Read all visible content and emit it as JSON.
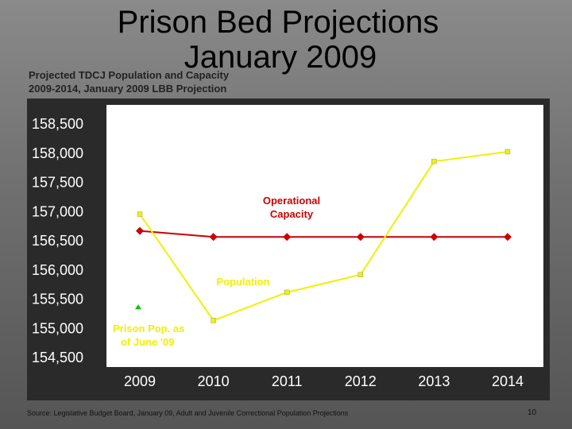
{
  "title": {
    "line1": "Prison Bed Projections",
    "line2": "January 2009"
  },
  "subtitle": {
    "line1": "Projected TDCJ Population and Capacity",
    "line2": "2009-2014, January 2009 LBB Projection"
  },
  "source": "Source: Legislative Budget Board, January 09, Adult and Juvenile Correctional Population Projections",
  "page_number": "10",
  "chart_data": {
    "type": "line",
    "categories": [
      "2009",
      "2010",
      "2011",
      "2012",
      "2013",
      "2014"
    ],
    "ylim": [
      154500,
      158500
    ],
    "y_ticks": [
      "158,500",
      "158,000",
      "157,500",
      "157,000",
      "156,500",
      "156,000",
      "155,500",
      "155,000",
      "154,500"
    ],
    "y_tick_values": [
      158500,
      158000,
      157500,
      157000,
      156500,
      156000,
      155500,
      155000,
      154500
    ],
    "grid": false,
    "series": [
      {
        "name": "Operational Capacity",
        "color": "#cc0000",
        "marker": "diamond",
        "values": [
          156641,
          156538,
          156538,
          156538,
          156538,
          156538
        ],
        "data_labels": [
          "156,641",
          "",
          "",
          "",
          "",
          "156,538"
        ]
      },
      {
        "name": "Population",
        "color": "#f0f000",
        "marker": "square",
        "values": [
          156928,
          155107,
          155589,
          155891,
          157831,
          157997
        ],
        "data_labels": [
          "156,928",
          "155,107",
          "155,589",
          "155,891",
          "157,831",
          "157,997"
        ]
      }
    ],
    "annotations": {
      "prison_pop_value": "155,329",
      "prison_pop_value_number": 155329,
      "prison_pop_label_line1": "Prison Pop. as",
      "prison_pop_label_line2": "of June '09",
      "marker_color": "#00cc00",
      "label_color": "#f0f000",
      "capacity_label_color": "#cc0000"
    }
  }
}
